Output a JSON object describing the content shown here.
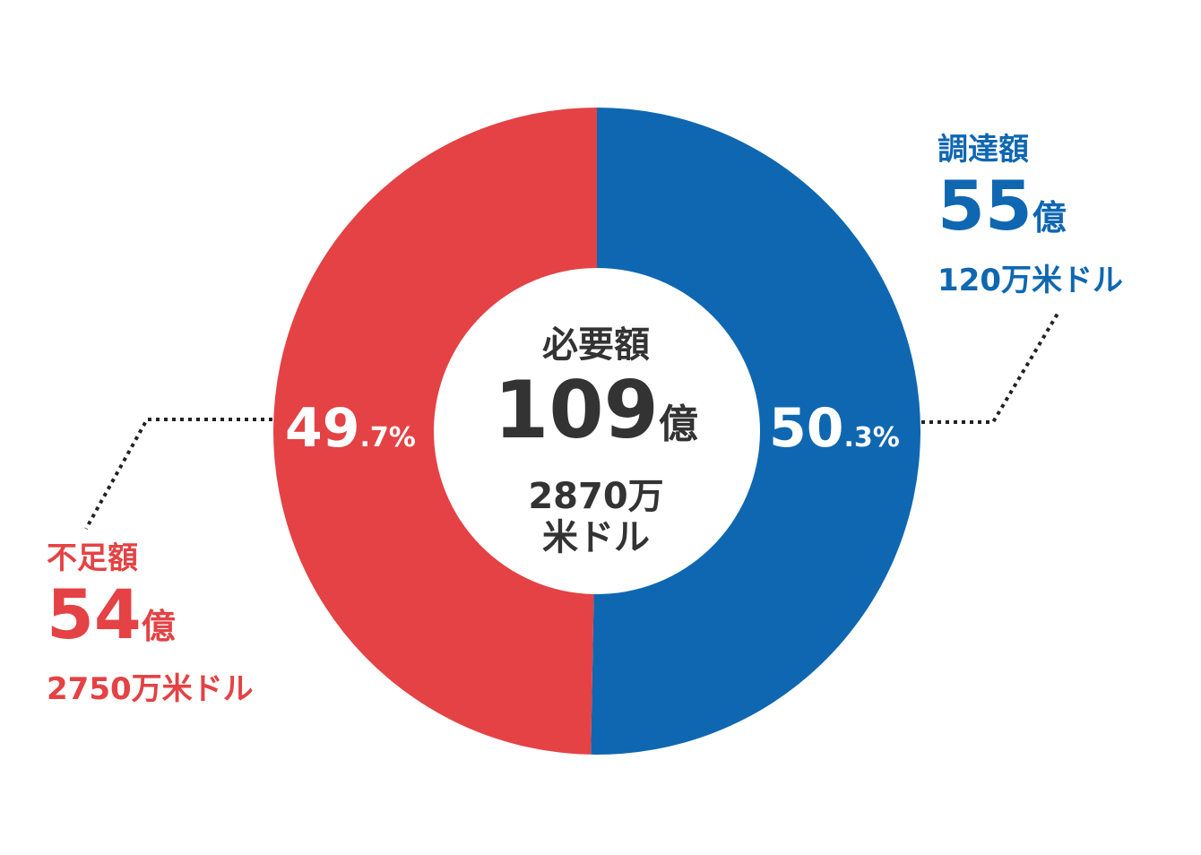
{
  "colors": {
    "funded": "#0F67B1",
    "shortfall": "#E44244",
    "center_text": "#333333",
    "leader": "#222222"
  },
  "center": {
    "title": "必要額",
    "amount": "109",
    "amount_unit": "億",
    "sub_line1": "2870万",
    "sub_line2": "米ドル"
  },
  "funded": {
    "title": "調達額",
    "amount": "55",
    "amount_unit": "億",
    "sub": "120万米ドル",
    "percent_main": "50",
    "percent_tail": ".3%"
  },
  "shortfall": {
    "title": "不足額",
    "amount": "54",
    "amount_unit": "億",
    "sub": "2750万米ドル",
    "percent_main": "49",
    "percent_tail": ".7%"
  },
  "chart_data": {
    "type": "pie",
    "donut": true,
    "start": "12 o'clock",
    "direction": "clockwise",
    "categories": [
      "調達額",
      "不足額"
    ],
    "values": [
      50.3,
      49.7
    ],
    "unit": "%",
    "colors": [
      "#0F67B1",
      "#E44244"
    ],
    "center_label": "必要額 109億 2870万米ドル"
  }
}
